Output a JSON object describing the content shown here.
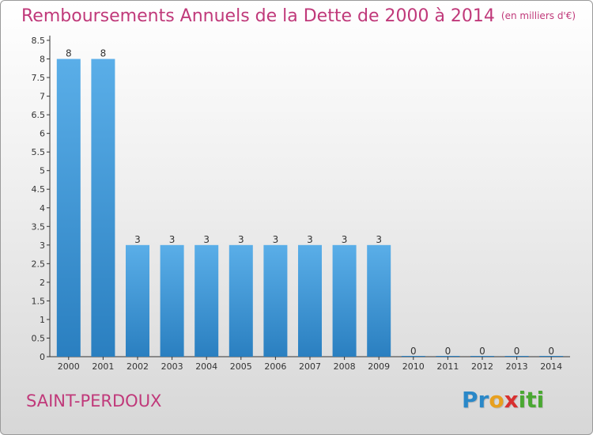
{
  "header": {
    "title": "Remboursements Annuels de la Dette de 2000 à 2014",
    "unit": "(en milliers d'€)"
  },
  "footer": {
    "commune": "SAINT-PERDOUX",
    "brand": "Proxiti",
    "brand_letters": [
      {
        "ch": "P",
        "color": "#2a88c8"
      },
      {
        "ch": "r",
        "color": "#2a88c8"
      },
      {
        "ch": "o",
        "color": "#e8a01e"
      },
      {
        "ch": "x",
        "color": "#d83030"
      },
      {
        "ch": "i",
        "color": "#4aa832"
      },
      {
        "ch": "t",
        "color": "#4aa832"
      },
      {
        "ch": "i",
        "color": "#4aa832"
      }
    ]
  },
  "colors": {
    "title": "#c0397a",
    "bar_top": "#5aaee8",
    "bar_bottom": "#2a7fc0"
  },
  "chart_data": {
    "type": "bar",
    "categories": [
      "2000",
      "2001",
      "2002",
      "2003",
      "2004",
      "2005",
      "2006",
      "2007",
      "2008",
      "2009",
      "2010",
      "2011",
      "2012",
      "2013",
      "2014"
    ],
    "values": [
      8,
      8,
      3,
      3,
      3,
      3,
      3,
      3,
      3,
      3,
      0,
      0,
      0,
      0,
      0
    ],
    "data_labels": [
      "8",
      "8",
      "3",
      "3",
      "3",
      "3",
      "3",
      "3",
      "3",
      "3",
      "0",
      "0",
      "0",
      "0",
      "0"
    ],
    "y_ticks": [
      "0",
      "0.5",
      "1",
      "1.5",
      "2",
      "2.5",
      "3",
      "3.5",
      "4",
      "4.5",
      "5",
      "5.5",
      "6",
      "6.5",
      "7",
      "7.5",
      "8",
      "8.5"
    ],
    "ylim": [
      0,
      8.5
    ],
    "grid": false
  }
}
